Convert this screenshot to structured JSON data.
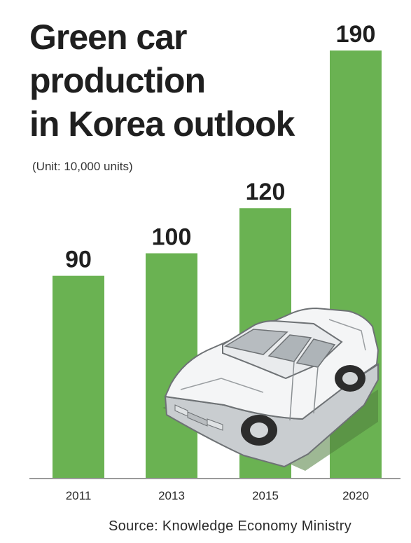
{
  "chart_data": {
    "type": "bar",
    "title_lines": [
      "Green car",
      "production",
      "in Korea outlook"
    ],
    "subtitle": "(Unit: 10,000 units)",
    "categories": [
      "2011",
      "2013",
      "2015",
      "2020"
    ],
    "values": [
      90,
      100,
      120,
      190
    ],
    "value_labels": [
      "90",
      "100",
      "120",
      "190"
    ],
    "source": "Source: Knowledge Economy Ministry",
    "bar_color": "#6ab252",
    "grid": false,
    "ylim": [
      0,
      200
    ]
  },
  "illustration": {
    "icon": "car-icon"
  }
}
